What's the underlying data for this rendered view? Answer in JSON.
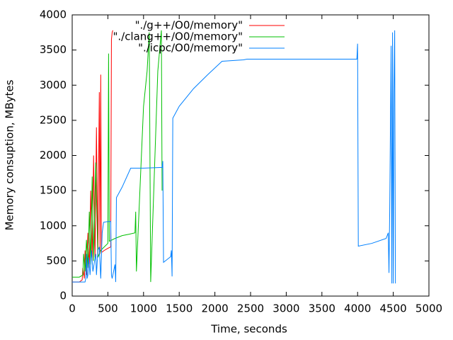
{
  "chart_data": {
    "type": "line",
    "xlabel": "Time, seconds",
    "ylabel": "Memory consuption, MBytes",
    "xlim": [
      0,
      5000
    ],
    "xticks": [
      0,
      500,
      1000,
      1500,
      2000,
      2500,
      3000,
      3500,
      4000,
      4500,
      5000
    ],
    "ylim": [
      0,
      4000
    ],
    "yticks": [
      0,
      500,
      1000,
      1500,
      2000,
      2500,
      3000,
      3500,
      4000
    ],
    "legend": "top-right",
    "series": [
      {
        "name": "\"./g++/O0/memory\"",
        "color": "#ff0000",
        "x": [
          0,
          100,
          140,
          150,
          170,
          180,
          200,
          220,
          240,
          260,
          280,
          300,
          320,
          340,
          360,
          380,
          390,
          400,
          410,
          450,
          500,
          540,
          550,
          560,
          570
        ],
        "values": [
          200,
          200,
          230,
          400,
          250,
          650,
          300,
          900,
          400,
          1500,
          500,
          2000,
          550,
          2400,
          580,
          2900,
          600,
          3150,
          620,
          650,
          680,
          700,
          3650,
          3750,
          3780
        ]
      },
      {
        "name": "\"./clang++/O0/memory\"",
        "color": "#00c000",
        "x": [
          0,
          100,
          150,
          160,
          180,
          200,
          220,
          240,
          260,
          280,
          300,
          330,
          360,
          400,
          450,
          500,
          510,
          520,
          600,
          700,
          800,
          880,
          890,
          900,
          1000,
          1050,
          1080,
          1100,
          1200,
          1250,
          1260
        ],
        "values": [
          270,
          270,
          300,
          600,
          350,
          800,
          400,
          1200,
          450,
          1700,
          500,
          1900,
          550,
          650,
          700,
          750,
          3450,
          780,
          820,
          860,
          880,
          900,
          1200,
          350,
          2700,
          3200,
          3750,
          200,
          3200,
          3780,
          1500
        ]
      },
      {
        "name": "\"./icpc/O0/memory\"",
        "color": "#0080ff",
        "x": [
          0,
          180,
          190,
          200,
          210,
          220,
          230,
          250,
          270,
          290,
          330,
          340,
          360,
          380,
          400,
          420,
          440,
          500,
          540,
          550,
          560,
          600,
          610,
          620,
          700,
          820,
          1000,
          1260,
          1270,
          1280,
          1380,
          1390,
          1400,
          1410,
          1500,
          1700,
          1900,
          2100,
          2400,
          2450,
          3000,
          3990,
          4000,
          4010,
          4200,
          4400,
          4430,
          4440,
          4450,
          4470,
          4480,
          4490,
          4500,
          4510,
          4520,
          4530
        ],
        "values": [
          200,
          200,
          250,
          600,
          250,
          300,
          550,
          300,
          650,
          350,
          600,
          300,
          650,
          700,
          250,
          900,
          1050,
          1060,
          1060,
          300,
          250,
          450,
          200,
          1400,
          1550,
          1820,
          1820,
          1830,
          1920,
          480,
          560,
          650,
          280,
          2530,
          2700,
          2950,
          3150,
          3340,
          3360,
          3370,
          3370,
          3370,
          3590,
          710,
          750,
          820,
          900,
          330,
          1200,
          3560,
          180,
          3750,
          180,
          2900,
          3780,
          180
        ]
      }
    ]
  }
}
